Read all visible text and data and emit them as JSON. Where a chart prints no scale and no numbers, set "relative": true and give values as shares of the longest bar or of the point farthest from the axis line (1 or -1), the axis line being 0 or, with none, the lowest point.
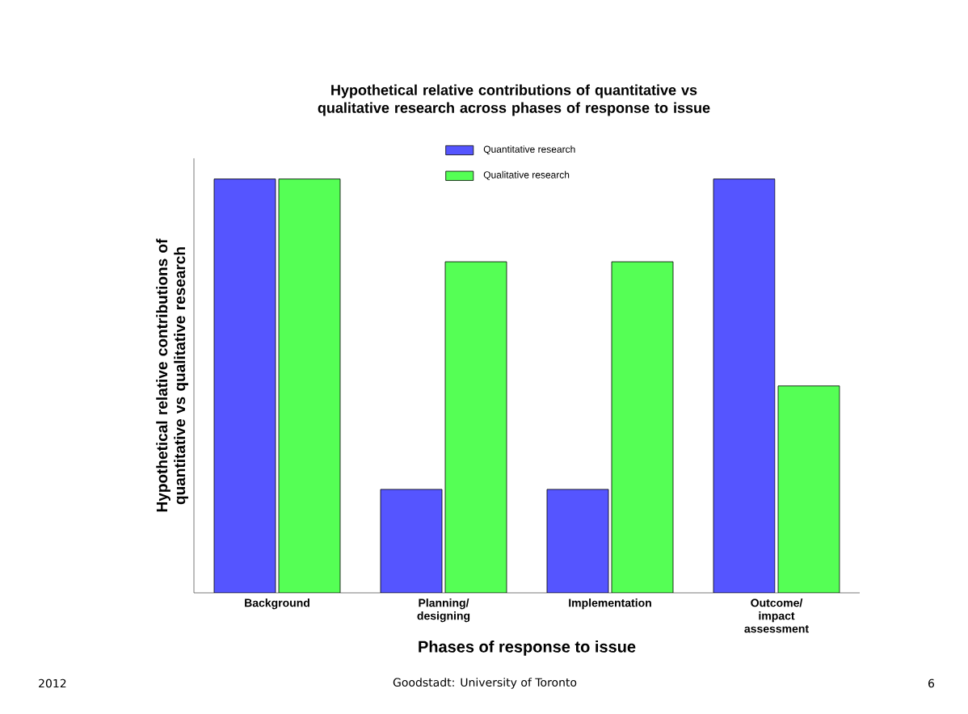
{
  "chart_data": {
    "type": "bar",
    "title": "Hypothetical relative contributions of quantitative vs qualitative research across phases of response to issue",
    "xlabel": "Phases of response to issue",
    "ylabel": "Hypothetical relative contributions of quantitative vs qualitative research",
    "categories": [
      "Background",
      "Planning/ designing",
      "Implementation",
      "Outcome/ impact assessment"
    ],
    "series": [
      {
        "name": "Quantitative research",
        "color": "#5555ff",
        "values": [
          1,
          0.25,
          0.25,
          1
        ]
      },
      {
        "name": "Qualitative research",
        "color": "#55ff55",
        "values": [
          1,
          0.8,
          0.8,
          0.5
        ]
      }
    ],
    "relative": true,
    "legend": "top",
    "grid": false,
    "annotations": [
      "2012",
      "Goodstadt: University of Toronto",
      "6"
    ]
  }
}
